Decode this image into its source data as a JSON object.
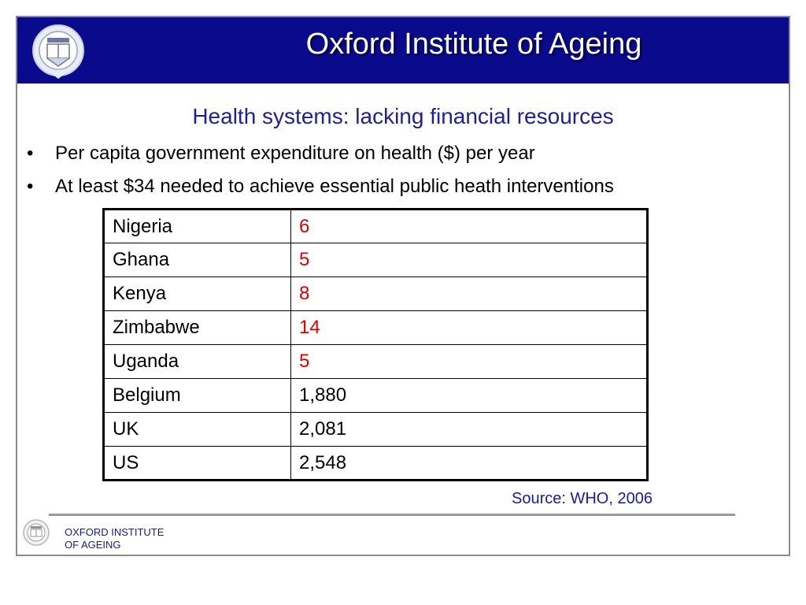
{
  "header": {
    "title": "Oxford Institute of Ageing"
  },
  "subtitle": "Health systems: lacking financial resources",
  "bullets": [
    "Per capita government expenditure on health ($) per year",
    "At least $34 needed to achieve essential public heath interventions"
  ],
  "table": {
    "rows": [
      {
        "country": "Nigeria",
        "value": "6"
      },
      {
        "country": "Ghana",
        "value": "5"
      },
      {
        "country": "Kenya",
        "value": "8"
      },
      {
        "country": "Zimbabwe",
        "value": "14"
      },
      {
        "country": "Uganda",
        "value": "5"
      },
      {
        "country": "Belgium",
        "value": "1,880"
      },
      {
        "country": "UK",
        "value": "2,081"
      },
      {
        "country": "US",
        "value": "2,548"
      }
    ],
    "highlight_color": "#e00000"
  },
  "source": "Source: WHO, 2006",
  "footer": {
    "line1": "OXFORD INSTITUTE",
    "line2": "OF AGEING"
  },
  "colors": {
    "header_bg": "#0a0a8c",
    "subtitle": "#1f1f9e"
  },
  "icons": {
    "header_logo": "oxford-crest-icon",
    "footer_logo": "oxford-crest-icon"
  }
}
